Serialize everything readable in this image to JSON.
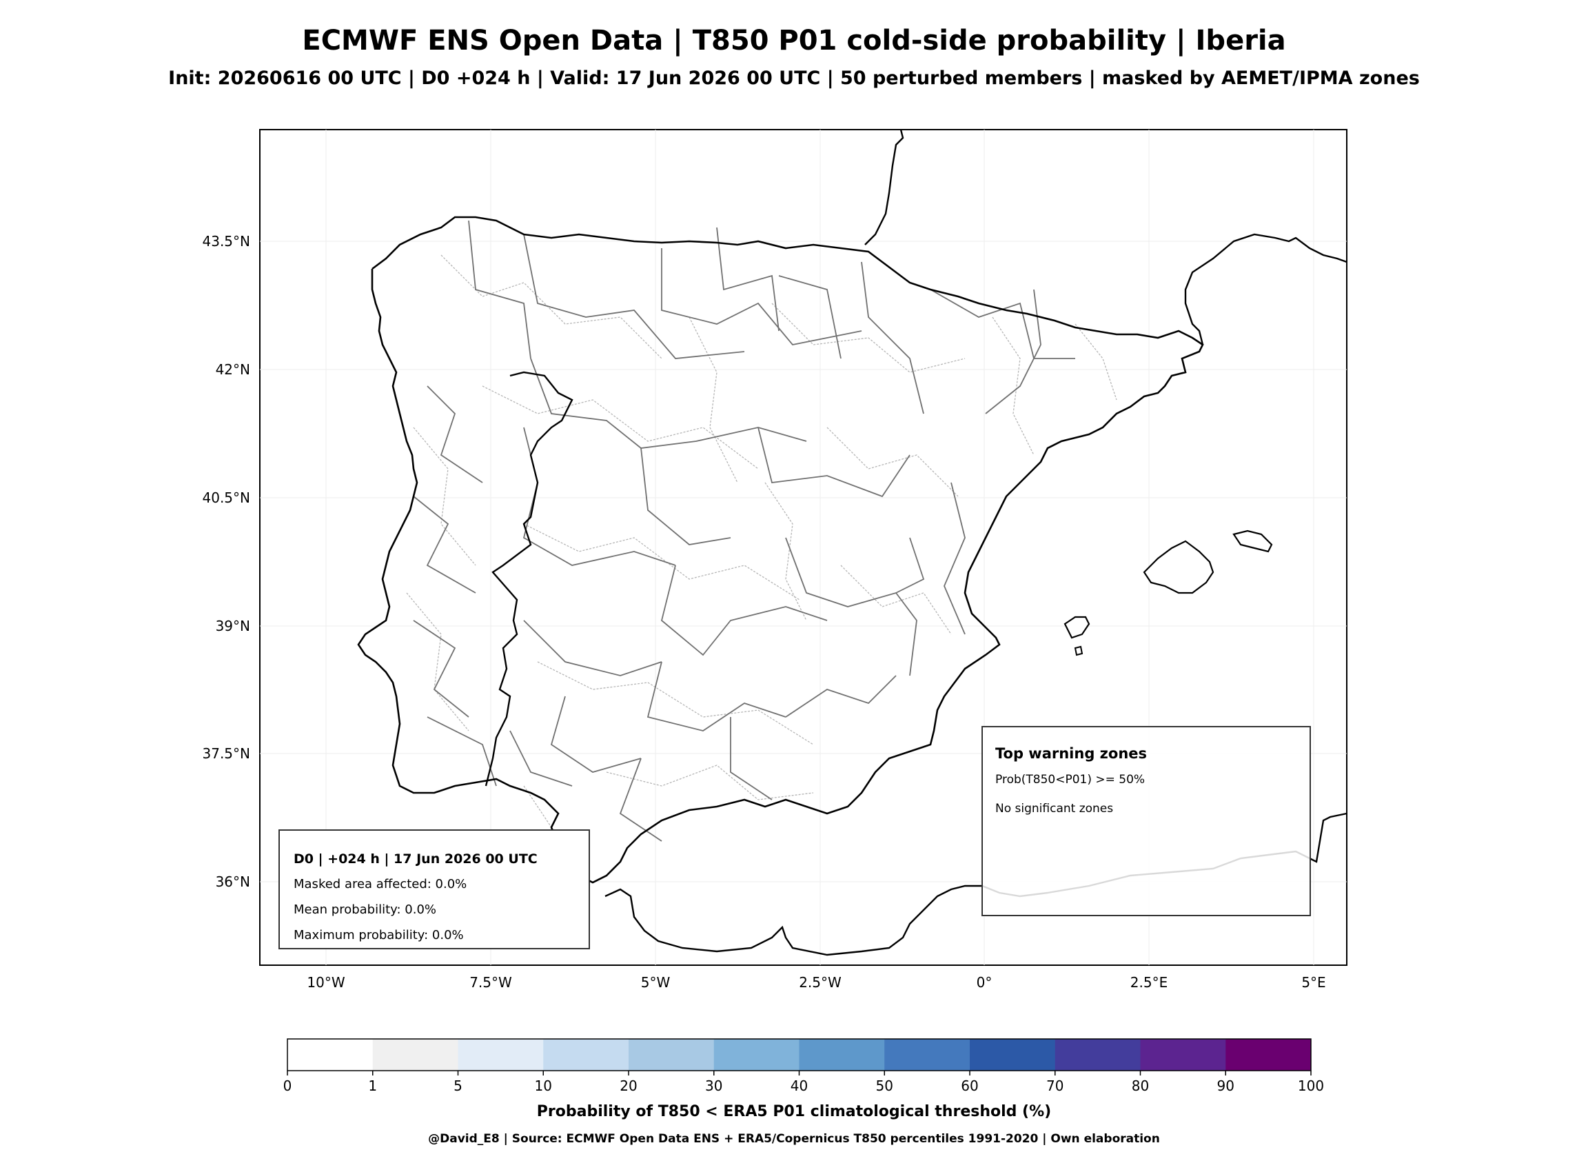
{
  "title": "ECMWF ENS Open Data | T850 P01 cold-side probability | Iberia",
  "subtitle": "Init: 20260616 00 UTC | D0 +024 h | Valid: 17 Jun 2026 00 UTC | 50 perturbed members | masked by AEMET/IPMA zones",
  "map": {
    "lat_ticks": [
      "43.5°N",
      "42°N",
      "40.5°N",
      "39°N",
      "37.5°N",
      "36°N"
    ],
    "lon_ticks": [
      "10°W",
      "7.5°W",
      "5°W",
      "2.5°W",
      "0°",
      "2.5°E",
      "5°E"
    ],
    "coast_color": "#000000",
    "zone_border_color": "#707070",
    "subzone_border_color": "#b5b5b5",
    "grid_color": "#eeeeee"
  },
  "info_box": {
    "header": "D0 | +024 h | 17 Jun 2026 00 UTC",
    "masked_area": "Masked area affected: 0.0%",
    "mean_probability": "Mean probability: 0.0%",
    "max_probability": "Maximum probability: 0.0%"
  },
  "warning_box": {
    "header": "Top warning zones",
    "threshold": "Prob(T850<P01) >= 50%",
    "message": "No significant zones"
  },
  "colorbar": {
    "ticks": [
      "0",
      "1",
      "5",
      "10",
      "20",
      "30",
      "40",
      "50",
      "60",
      "70",
      "80",
      "90",
      "100"
    ],
    "colors": [
      "#ffffff",
      "#f0f0f0",
      "#e2ecf7",
      "#c5dbf0",
      "#a8c9e4",
      "#80b3da",
      "#5e98cb",
      "#4479bd",
      "#2c59a7",
      "#433d9c",
      "#5c2490",
      "#6a0070"
    ],
    "label": "Probability of T850 < ERA5 P01 climatological threshold (%)"
  },
  "credits": "@David_E8 | Source: ECMWF Open Data ENS + ERA5/Copernicus T850 percentiles 1991-2020 | Own elaboration"
}
